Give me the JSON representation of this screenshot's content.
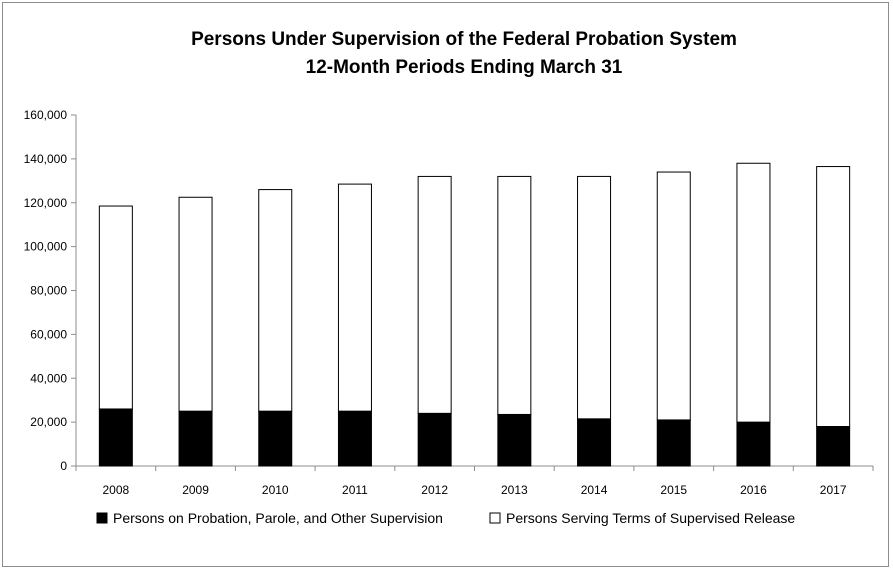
{
  "chart_data": {
    "type": "bar",
    "stacked": true,
    "title": "Persons Under Supervision of the Federal Probation System",
    "subtitle": "12-Month Periods Ending March 31",
    "xlabel": "",
    "ylabel": "",
    "categories": [
      "2008",
      "2009",
      "2010",
      "2011",
      "2012",
      "2013",
      "2014",
      "2015",
      "2016",
      "2017"
    ],
    "series": [
      {
        "name": "Persons on Probation, Parole, and Other Supervision",
        "color": "#000000",
        "values": [
          26000,
          25000,
          25000,
          25000,
          24000,
          23500,
          21500,
          21000,
          20000,
          18000
        ]
      },
      {
        "name": "Persons Serving Terms of Supervised Release",
        "color": "#ffffff",
        "values": [
          92500,
          97500,
          101000,
          103500,
          108000,
          108500,
          110500,
          113000,
          118000,
          118500
        ]
      }
    ],
    "ylim": [
      0,
      160000
    ],
    "yticks": [
      "0",
      "20,000",
      "40,000",
      "60,000",
      "80,000",
      "100,000",
      "120,000",
      "140,000",
      "160,000"
    ],
    "grid": false,
    "legend_position": "bottom"
  }
}
